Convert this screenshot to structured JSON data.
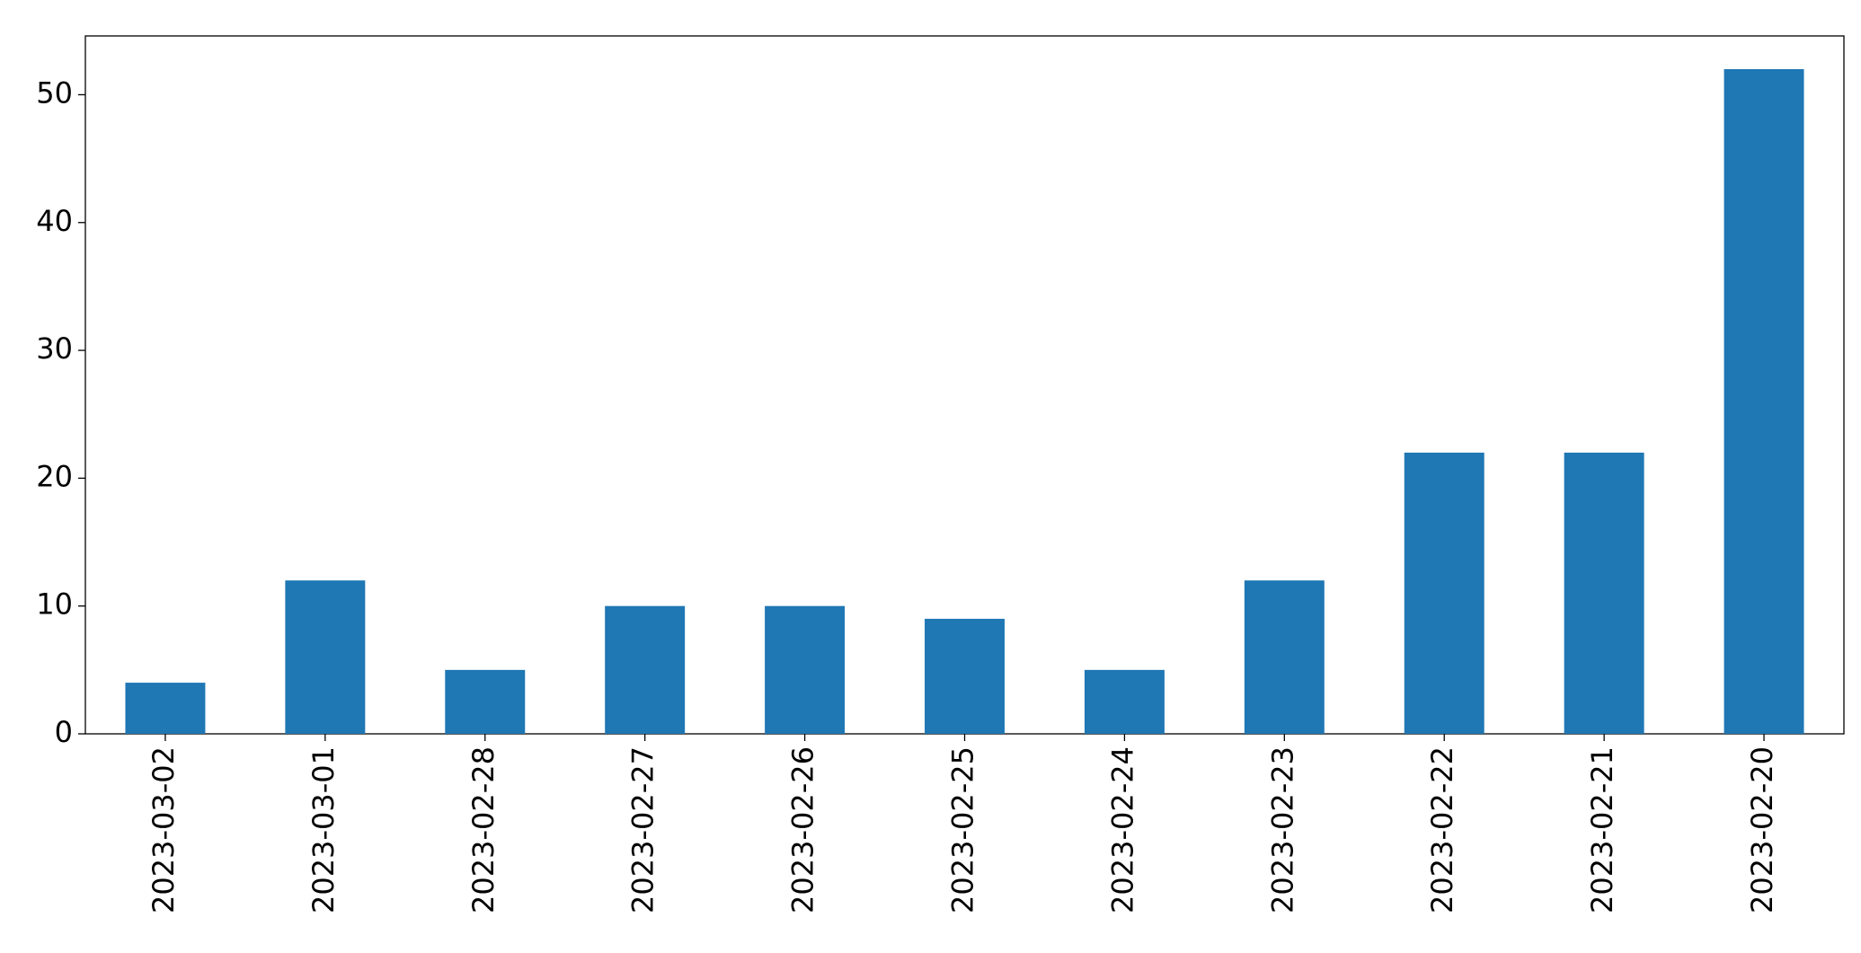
{
  "chart_data": {
    "type": "bar",
    "categories": [
      "2023-03-02",
      "2023-03-01",
      "2023-02-28",
      "2023-02-27",
      "2023-02-26",
      "2023-02-25",
      "2023-02-24",
      "2023-02-23",
      "2023-02-22",
      "2023-02-21",
      "2023-02-20"
    ],
    "values": [
      4,
      12,
      5,
      10,
      10,
      9,
      5,
      12,
      22,
      22,
      52
    ],
    "color": "#1f77b4",
    "ylim": [
      0,
      54.6
    ],
    "yticks": [
      0,
      10,
      20,
      30,
      40,
      50
    ],
    "grid": false
  }
}
